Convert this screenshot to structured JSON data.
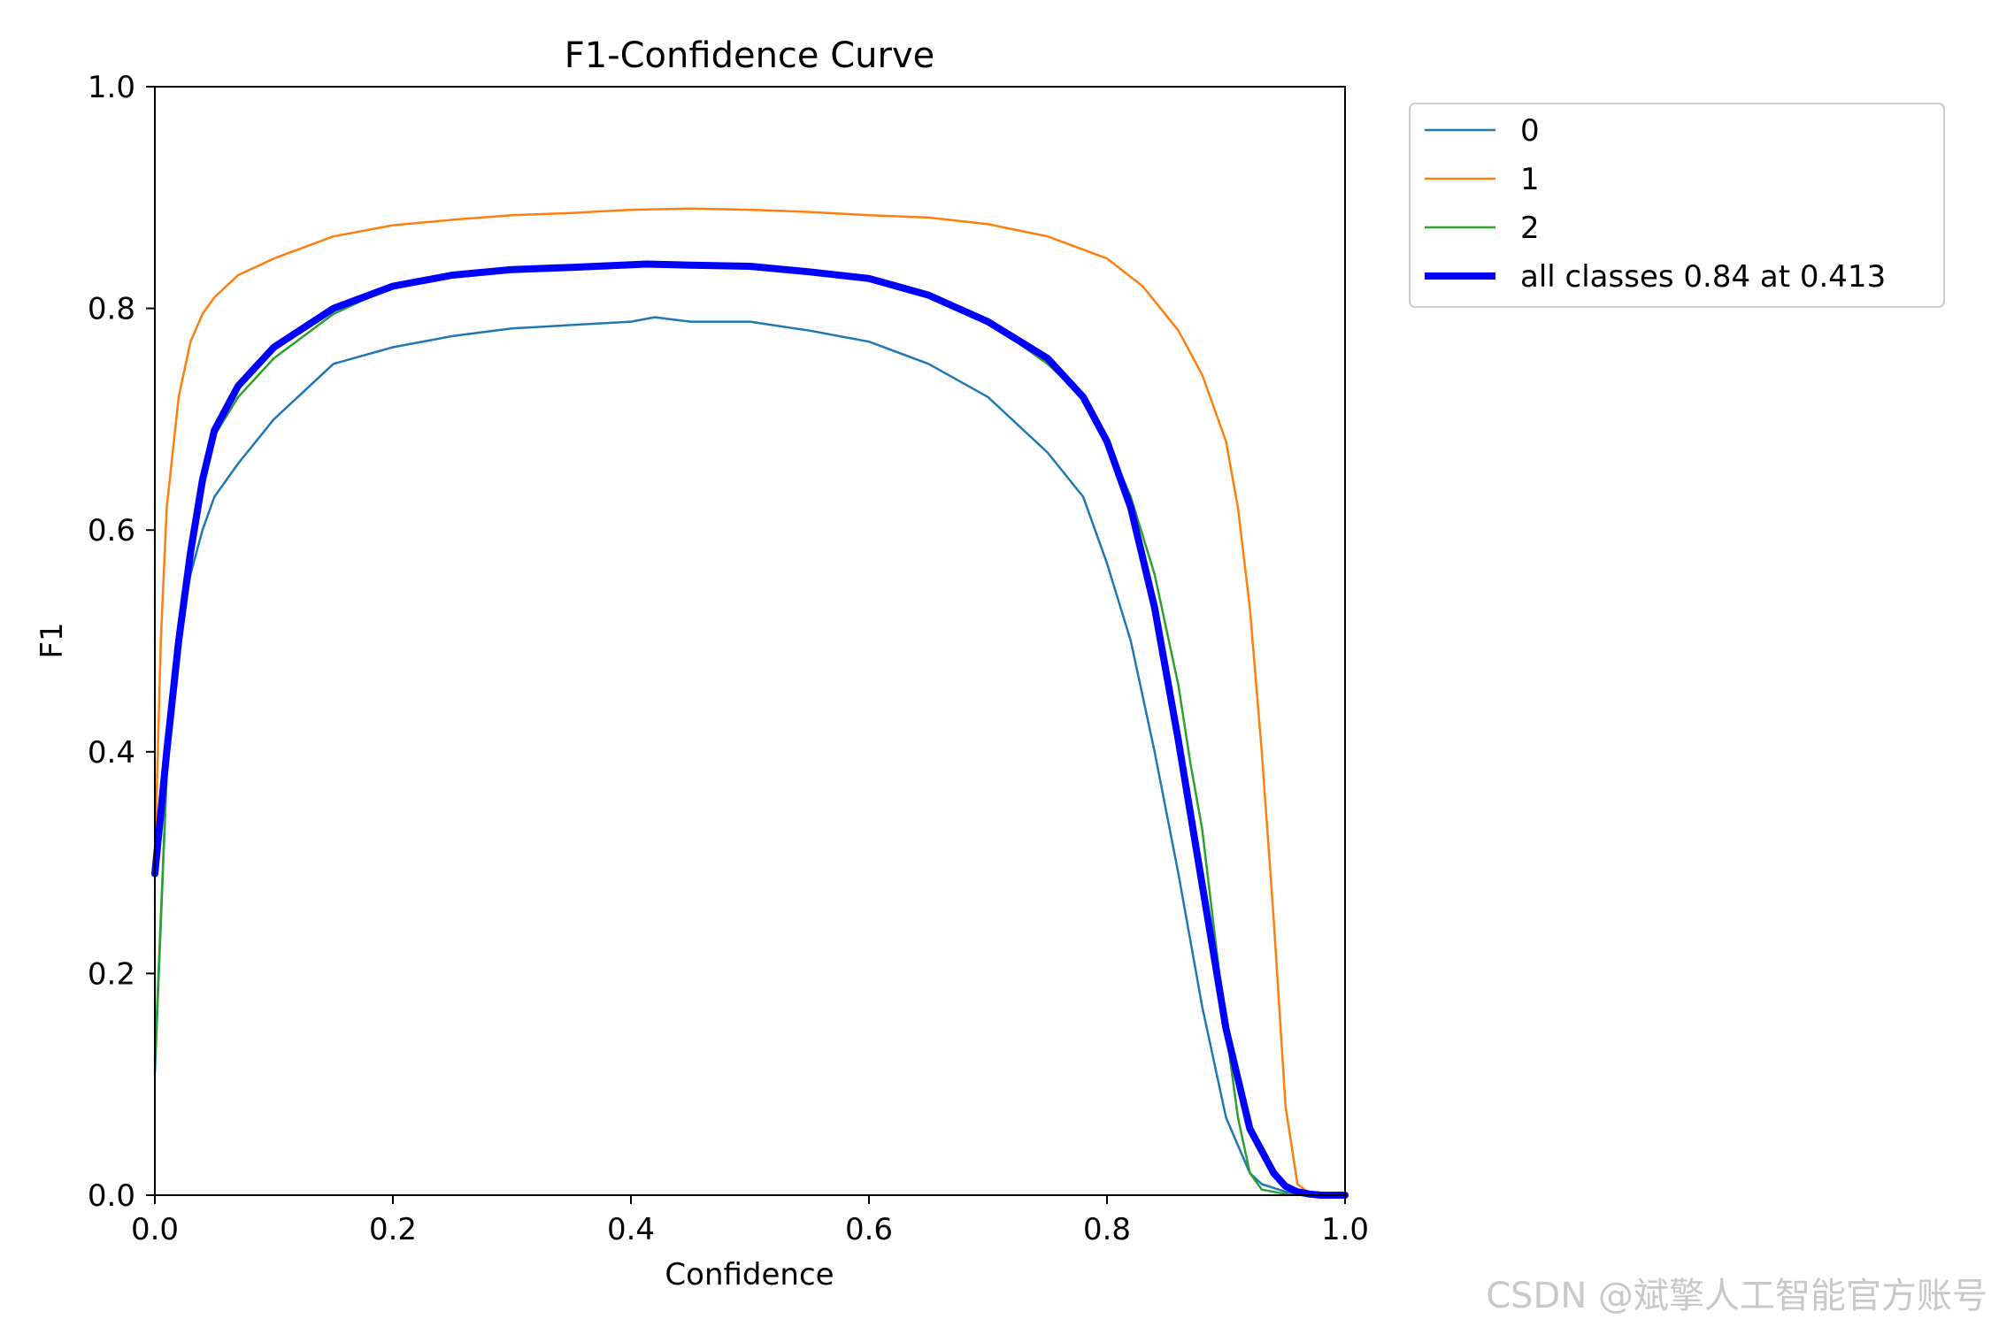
{
  "chart_data": {
    "type": "line",
    "title": "F1-Confidence Curve",
    "xlabel": "Confidence",
    "ylabel": "F1",
    "xlim": [
      0.0,
      1.0
    ],
    "ylim": [
      0.0,
      1.0
    ],
    "xticks": [
      "0.0",
      "0.2",
      "0.4",
      "0.6",
      "0.8",
      "1.0"
    ],
    "yticks": [
      "0.0",
      "0.2",
      "0.4",
      "0.6",
      "0.8",
      "1.0"
    ],
    "grid": false,
    "legend_position": "outside-top-right",
    "series": [
      {
        "name": "0",
        "color": "#1f77b4",
        "x": [
          0.0,
          0.01,
          0.02,
          0.03,
          0.04,
          0.05,
          0.07,
          0.1,
          0.15,
          0.2,
          0.25,
          0.3,
          0.35,
          0.4,
          0.42,
          0.45,
          0.5,
          0.55,
          0.6,
          0.65,
          0.7,
          0.75,
          0.78,
          0.8,
          0.82,
          0.84,
          0.86,
          0.88,
          0.9,
          0.92,
          0.93,
          0.95,
          0.97,
          1.0
        ],
        "y": [
          0.11,
          0.38,
          0.5,
          0.56,
          0.6,
          0.63,
          0.66,
          0.7,
          0.75,
          0.765,
          0.775,
          0.782,
          0.785,
          0.788,
          0.792,
          0.788,
          0.788,
          0.78,
          0.77,
          0.75,
          0.72,
          0.67,
          0.63,
          0.57,
          0.5,
          0.4,
          0.29,
          0.17,
          0.07,
          0.02,
          0.01,
          0.003,
          0.001,
          0.0
        ]
      },
      {
        "name": "1",
        "color": "#ff7f0e",
        "x": [
          0.0,
          0.005,
          0.01,
          0.02,
          0.03,
          0.04,
          0.05,
          0.07,
          0.1,
          0.15,
          0.2,
          0.25,
          0.3,
          0.35,
          0.4,
          0.45,
          0.5,
          0.55,
          0.6,
          0.65,
          0.7,
          0.75,
          0.8,
          0.83,
          0.86,
          0.88,
          0.9,
          0.91,
          0.92,
          0.93,
          0.94,
          0.95,
          0.96,
          0.97,
          1.0
        ],
        "y": [
          0.3,
          0.5,
          0.62,
          0.72,
          0.77,
          0.795,
          0.81,
          0.83,
          0.845,
          0.865,
          0.875,
          0.88,
          0.884,
          0.886,
          0.889,
          0.89,
          0.889,
          0.887,
          0.884,
          0.882,
          0.876,
          0.865,
          0.845,
          0.82,
          0.78,
          0.74,
          0.68,
          0.62,
          0.53,
          0.4,
          0.25,
          0.08,
          0.01,
          0.002,
          0.0
        ]
      },
      {
        "name": "2",
        "color": "#2ca02c",
        "x": [
          0.0,
          0.01,
          0.02,
          0.03,
          0.04,
          0.05,
          0.07,
          0.1,
          0.15,
          0.2,
          0.25,
          0.3,
          0.35,
          0.4,
          0.45,
          0.5,
          0.55,
          0.6,
          0.65,
          0.7,
          0.75,
          0.78,
          0.8,
          0.82,
          0.84,
          0.86,
          0.87,
          0.88,
          0.89,
          0.9,
          0.91,
          0.92,
          0.93,
          0.95,
          1.0
        ],
        "y": [
          0.12,
          0.38,
          0.5,
          0.58,
          0.64,
          0.685,
          0.72,
          0.755,
          0.795,
          0.82,
          0.832,
          0.837,
          0.838,
          0.839,
          0.838,
          0.837,
          0.834,
          0.828,
          0.812,
          0.788,
          0.75,
          0.72,
          0.68,
          0.63,
          0.56,
          0.46,
          0.39,
          0.33,
          0.24,
          0.15,
          0.07,
          0.02,
          0.005,
          0.001,
          0.0
        ]
      },
      {
        "name": "all classes 0.84 at 0.413",
        "color": "#0000ff",
        "thick": true,
        "x": [
          0.0,
          0.01,
          0.02,
          0.03,
          0.04,
          0.05,
          0.07,
          0.1,
          0.15,
          0.2,
          0.25,
          0.3,
          0.35,
          0.413,
          0.45,
          0.5,
          0.55,
          0.6,
          0.65,
          0.7,
          0.75,
          0.78,
          0.8,
          0.82,
          0.84,
          0.86,
          0.88,
          0.9,
          0.92,
          0.94,
          0.95,
          0.96,
          0.97,
          0.98,
          1.0
        ],
        "y": [
          0.29,
          0.4,
          0.5,
          0.58,
          0.645,
          0.69,
          0.73,
          0.765,
          0.8,
          0.82,
          0.83,
          0.835,
          0.837,
          0.84,
          0.839,
          0.838,
          0.833,
          0.827,
          0.812,
          0.788,
          0.755,
          0.72,
          0.68,
          0.62,
          0.53,
          0.41,
          0.28,
          0.15,
          0.06,
          0.02,
          0.008,
          0.003,
          0.001,
          0.0,
          0.0
        ]
      }
    ]
  },
  "watermark": "CSDN @斌擎人工智能官方账号"
}
